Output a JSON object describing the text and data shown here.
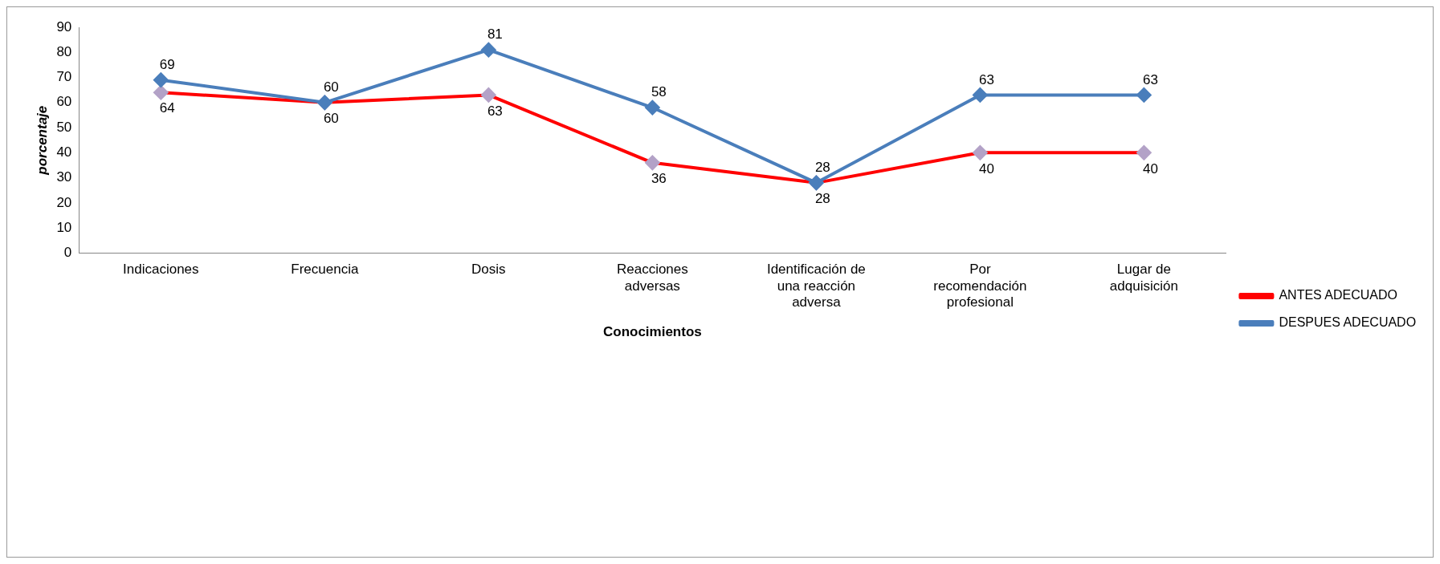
{
  "chart_data": {
    "type": "line",
    "xlabel": "Conocimientos",
    "ylabel": "porcentaje",
    "categories": [
      "Indicaciones",
      "Frecuencia",
      "Dosis",
      "Reacciones adversas",
      "Identificación de una reacción adversa",
      "Por recomendación profesional",
      "Lugar de adquisición"
    ],
    "series": [
      {
        "name": "ANTES ADECUADO",
        "color": "#ff0000",
        "colors": [
          "#b3a2c7",
          "#b3a2c7",
          "#b3a2c7",
          "#b3a2c7",
          "#b3a2c7",
          "#b3a2c7",
          "#b3a2c7"
        ],
        "values": [
          64,
          60,
          63,
          36,
          28,
          40,
          40
        ]
      },
      {
        "name": "DESPUES ADECUADO",
        "color": "#4a7ebb",
        "values": [
          69,
          60,
          81,
          58,
          28,
          63,
          63
        ]
      }
    ],
    "ylim": [
      0,
      90
    ],
    "yticks": [
      0,
      10,
      20,
      30,
      40,
      50,
      60,
      70,
      80,
      90
    ],
    "grid": false,
    "legend": "right",
    "marker": "diamond",
    "line_style": "solid",
    "data_labels": true
  }
}
